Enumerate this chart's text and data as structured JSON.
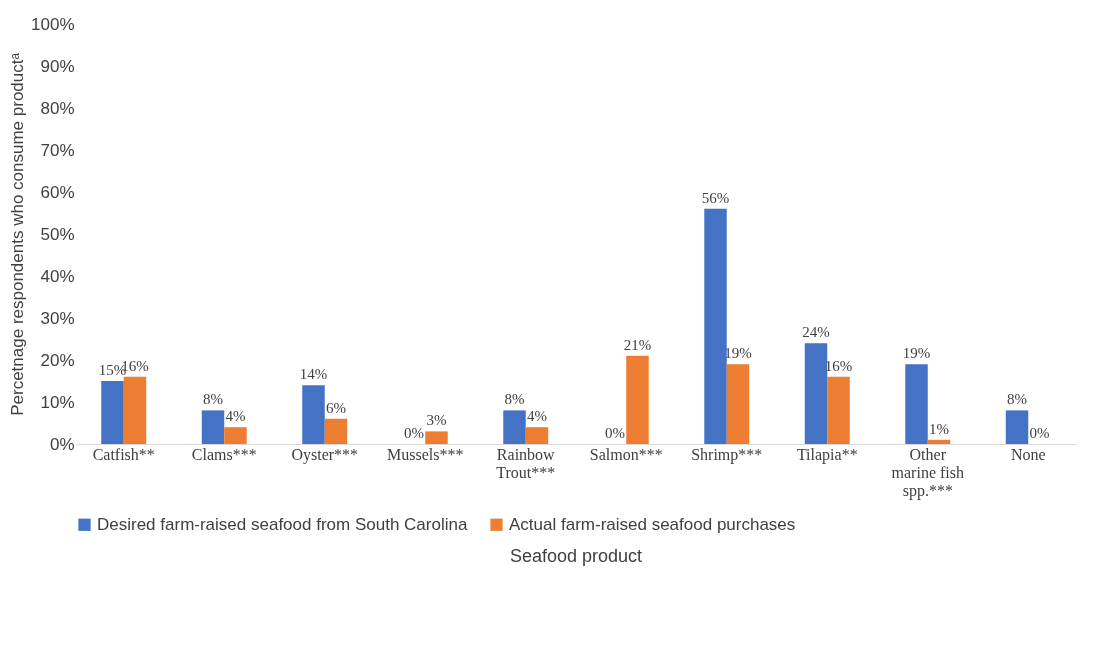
{
  "chart_data": {
    "type": "bar",
    "xlabel": "Seafood product",
    "ylabel": "Percetnage respondents who consume productᵃ",
    "categories": [
      "Catfish**",
      "Clams***",
      "Oyster***",
      "Mussels***",
      "Rainbow Trout***",
      "Salmon***",
      "Shrimp***",
      "Tilapia**",
      "Other marine fish spp.***",
      "None"
    ],
    "series": [
      {
        "name": "Desired farm-raised seafood from South Carolina",
        "color": "#4472c4",
        "values": [
          15,
          8,
          14,
          0,
          8,
          0,
          56,
          24,
          19,
          8
        ],
        "value_labels": [
          "15%",
          "8%",
          "14%",
          "0%",
          "8%",
          "0%",
          "56%",
          "24%",
          "19%",
          "8%"
        ]
      },
      {
        "name": "Actual farm-raised seafood purchases",
        "color": "#ed7d31",
        "values": [
          16,
          4,
          6,
          3,
          4,
          21,
          19,
          16,
          1,
          0
        ],
        "value_labels": [
          "16%",
          "4%",
          "6%",
          "3%",
          "4%",
          "21%",
          "19%",
          "16%",
          "1%",
          "0%"
        ]
      }
    ],
    "ylim": [
      0,
      100
    ],
    "yticks": [
      {
        "value": 0,
        "label": "0%"
      },
      {
        "value": 10,
        "label": "10%"
      },
      {
        "value": 20,
        "label": "20%"
      },
      {
        "value": 30,
        "label": "30%"
      },
      {
        "value": 40,
        "label": "40%"
      },
      {
        "value": 50,
        "label": "50%"
      },
      {
        "value": 60,
        "label": "60%"
      },
      {
        "value": 70,
        "label": "70%"
      },
      {
        "value": 80,
        "label": "80%"
      },
      {
        "value": 90,
        "label": "90%"
      },
      {
        "value": 100,
        "label": "100%"
      }
    ],
    "grid": false,
    "legend": "bottom"
  }
}
